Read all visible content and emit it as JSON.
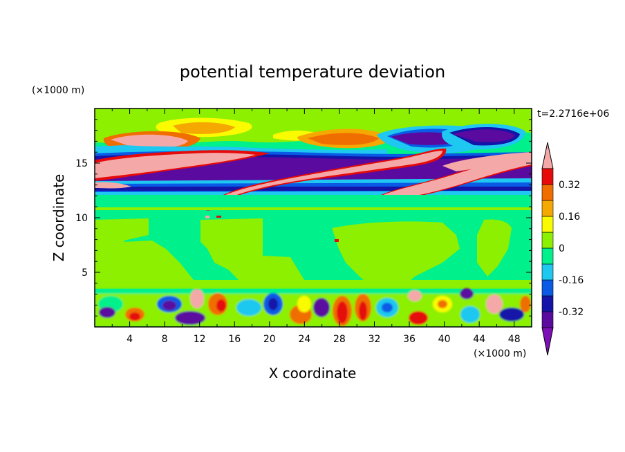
{
  "chart_data": {
    "type": "heatmap",
    "title": "potential temperature deviation",
    "xlabel": "X coordinate",
    "ylabel": "Z coordinate",
    "x_unit": "(×1000 m)",
    "y_unit": "(×1000 m)",
    "time_label": "t=2.2716e+06",
    "xlim": [
      0,
      50
    ],
    "ylim": [
      0,
      20
    ],
    "x_ticks": [
      4,
      8,
      12,
      16,
      20,
      24,
      28,
      32,
      36,
      40,
      44,
      48
    ],
    "y_ticks": [
      5,
      10,
      15
    ],
    "colorbar": {
      "levels": [
        -0.4,
        -0.32,
        -0.24,
        -0.16,
        -0.08,
        0,
        0.08,
        0.16,
        0.24,
        0.32,
        0.4
      ],
      "labels": [
        "0.32",
        "0.16",
        "0",
        "-0.16",
        "-0.32"
      ],
      "label_values": [
        0.32,
        0.16,
        0,
        -0.16,
        -0.32
      ],
      "colors": [
        "#7d0fb8",
        "#5a0a9e",
        "#1414a8",
        "#0a5ae6",
        "#1ec8f0",
        "#00f08c",
        "#8cf000",
        "#fafa00",
        "#f5a800",
        "#f06e00",
        "#e60a0a",
        "#f5a8a8"
      ],
      "extend": "both"
    }
  }
}
